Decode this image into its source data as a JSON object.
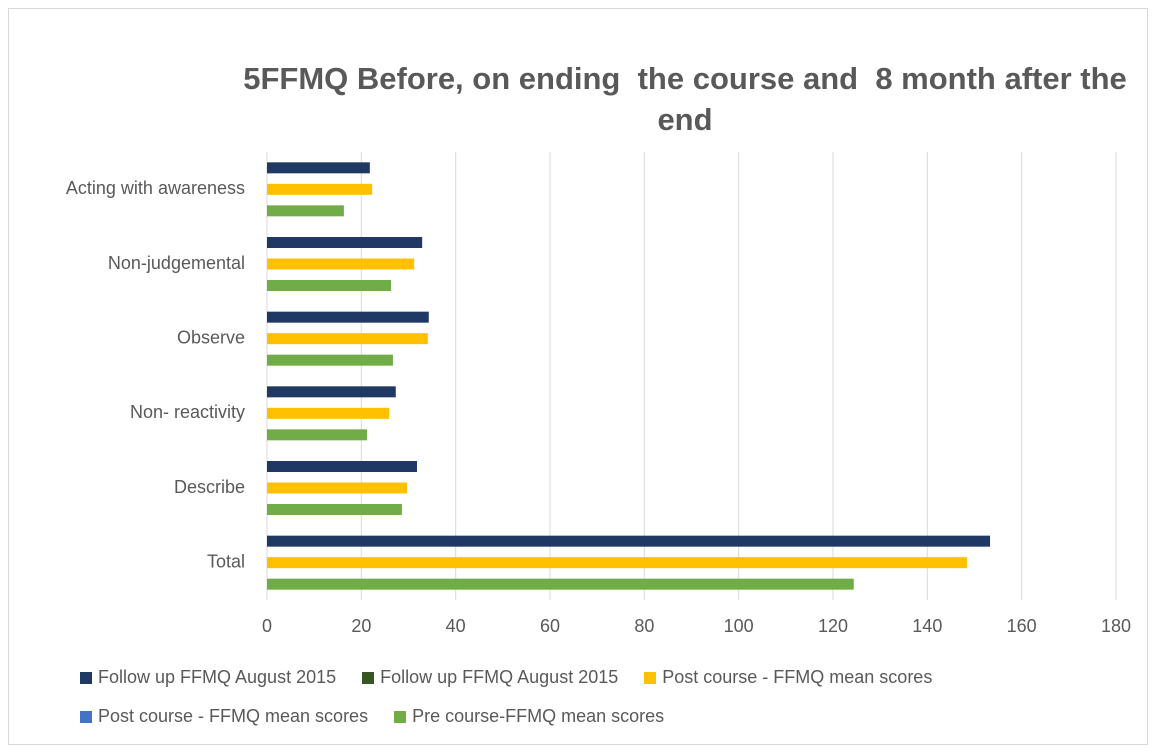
{
  "chart_data": {
    "type": "barh",
    "title": "5FFMQ Before, on ending  the course and  8 month after the end",
    "categories": [
      "Acting with awareness",
      "Non-judgemental",
      "Observe",
      "Non- reactivity",
      "Describe",
      "Total"
    ],
    "series": [
      {
        "name": "Follow up FFMQ August 2015",
        "color": "#203864",
        "values": [
          21.8,
          32.9,
          34.3,
          27.3,
          31.8,
          153.3
        ]
      },
      {
        "name": "Follow up FFMQ August 2015",
        "color": "#375623",
        "values": [
          null,
          null,
          null,
          null,
          null,
          null
        ]
      },
      {
        "name": "Post course - FFMQ mean scores",
        "color": "#ffc000",
        "values": [
          22.3,
          31.2,
          34.1,
          25.9,
          29.7,
          148.4
        ]
      },
      {
        "name": "Post course - FFMQ mean scores",
        "color": "#4472c4",
        "values": [
          null,
          null,
          null,
          null,
          null,
          null
        ]
      },
      {
        "name": "Pre course-FFMQ mean scores",
        "color": "#70ad47",
        "values": [
          16.3,
          26.3,
          26.7,
          21.2,
          28.6,
          124.4
        ]
      }
    ],
    "xlim": [
      0,
      180
    ],
    "xticks": [
      0,
      20,
      40,
      60,
      80,
      100,
      120,
      140,
      160,
      180
    ],
    "grid": true
  }
}
